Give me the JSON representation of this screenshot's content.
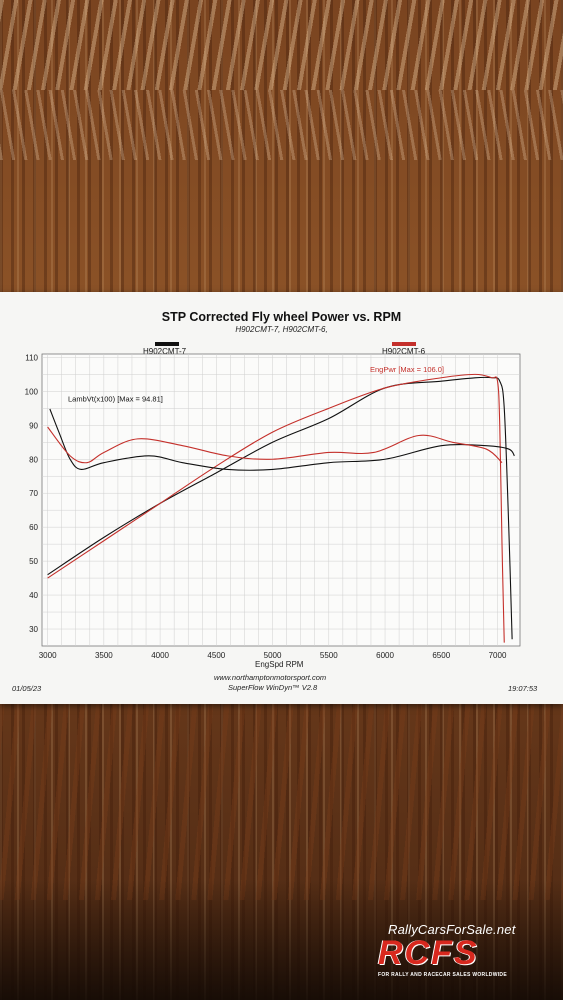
{
  "chart_data": {
    "type": "line",
    "title": "STP Corrected Fly wheel Power vs. RPM",
    "subtitle": "H902CMT-7, H902CMT-6,",
    "xlabel": "EngSpd  RPM",
    "xlim": [
      2950,
      7200
    ],
    "ylim": [
      25,
      111
    ],
    "xticks": [
      3000,
      3500,
      4000,
      4500,
      5000,
      5500,
      6000,
      6500,
      7000
    ],
    "yticks": [
      30,
      40,
      50,
      60,
      70,
      80,
      90,
      100,
      110
    ],
    "legend": [
      {
        "name": "H902CMT-7",
        "color": "#111111"
      },
      {
        "name": "H902CMT-6",
        "color": "#c4302b"
      }
    ],
    "annotations": [
      {
        "text": "LambVt(x100) [Max = 94.81]",
        "color": "#111111"
      },
      {
        "text": "EngPwr [Max = 106.0]",
        "color": "#c4302b"
      }
    ],
    "series": [
      {
        "name": "H902CMT-7",
        "color": "#111111",
        "x": [
          3000,
          3500,
          4000,
          4500,
          5000,
          5500,
          6000,
          6500,
          6800,
          6950,
          7020,
          7060,
          7100,
          7130
        ],
        "y": [
          46,
          57,
          67,
          76,
          85,
          92,
          101,
          103,
          104,
          104,
          103,
          95,
          60,
          27
        ]
      },
      {
        "name": "H902CMT-6",
        "color": "#c4302b",
        "x": [
          3000,
          3500,
          4000,
          4500,
          5000,
          5500,
          6000,
          6500,
          6800,
          6950,
          7000,
          7020,
          7040,
          7060
        ],
        "y": [
          45,
          56,
          67,
          78,
          88,
          95,
          101,
          104,
          105,
          104,
          103,
          90,
          55,
          26
        ]
      },
      {
        "name": "H902CMT-7",
        "color": "#111111",
        "x": [
          3020,
          3100,
          3200,
          3300,
          3500,
          3900,
          4200,
          4600,
          5000,
          5500,
          6000,
          6500,
          6900,
          7100,
          7150
        ],
        "y": [
          94.8,
          88,
          80,
          77,
          79,
          81,
          79,
          77,
          77,
          79,
          80,
          84,
          84,
          83,
          81
        ]
      },
      {
        "name": "H902CMT-6",
        "color": "#c4302b",
        "x": [
          3000,
          3200,
          3350,
          3500,
          3800,
          4200,
          4600,
          5000,
          5500,
          5900,
          6300,
          6600,
          6900,
          7040
        ],
        "y": [
          89.5,
          81,
          79,
          82,
          86,
          84,
          81,
          80,
          82,
          82,
          87,
          85,
          83,
          79
        ]
      }
    ]
  },
  "footer": {
    "url": "www.northamptonmotorsport.com",
    "software": "SuperFlow WinDyn™ V2.8",
    "date": "01/05/23",
    "time": "19:07:53"
  },
  "watermark": {
    "url": "RallyCarsForSale.net",
    "logo": "RCFS",
    "tagline": "FOR RALLY AND RACECAR SALES WORLDWIDE"
  }
}
